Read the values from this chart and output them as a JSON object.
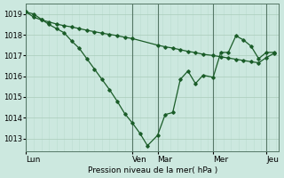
{
  "background_color": "#cce8df",
  "grid_color_major": "#aaccbb",
  "grid_color_minor": "#bbddd0",
  "line_color": "#1a5c28",
  "ylabel": "Pression niveau de la mer( hPa )",
  "ylim": [
    1012.4,
    1019.5
  ],
  "yticks": [
    1013,
    1014,
    1015,
    1016,
    1017,
    1018,
    1019
  ],
  "day_labels": [
    "Lun",
    "Ven",
    "Mar",
    "Mer",
    "Jeu"
  ],
  "day_positions": [
    0.0,
    0.42,
    0.52,
    0.74,
    0.95
  ],
  "vline_positions": [
    0.0,
    0.42,
    0.52,
    0.74,
    0.95
  ],
  "series1_x": [
    0.0,
    0.03,
    0.06,
    0.09,
    0.12,
    0.15,
    0.18,
    0.21,
    0.24,
    0.27,
    0.3,
    0.33,
    0.36,
    0.39,
    0.42,
    0.52,
    0.55,
    0.58,
    0.61,
    0.64,
    0.67,
    0.7,
    0.74,
    0.77,
    0.8,
    0.83,
    0.86,
    0.89,
    0.92,
    0.95,
    0.98
  ],
  "series1_y": [
    1019.1,
    1018.85,
    1018.72,
    1018.62,
    1018.52,
    1018.44,
    1018.38,
    1018.3,
    1018.22,
    1018.15,
    1018.08,
    1018.02,
    1017.96,
    1017.88,
    1017.82,
    1017.5,
    1017.42,
    1017.36,
    1017.28,
    1017.2,
    1017.14,
    1017.06,
    1017.0,
    1016.94,
    1016.88,
    1016.82,
    1016.76,
    1016.7,
    1016.65,
    1016.9,
    1017.1
  ],
  "series2_x": [
    0.0,
    0.03,
    0.06,
    0.09,
    0.12,
    0.15,
    0.18,
    0.21,
    0.24,
    0.27,
    0.3,
    0.33,
    0.36,
    0.39,
    0.42,
    0.45,
    0.48,
    0.52,
    0.55,
    0.58,
    0.61,
    0.64,
    0.67,
    0.7,
    0.74,
    0.77,
    0.8,
    0.83,
    0.86,
    0.89,
    0.92,
    0.95,
    0.98
  ],
  "series2_y": [
    1019.1,
    1019.0,
    1018.75,
    1018.5,
    1018.3,
    1018.1,
    1017.7,
    1017.35,
    1016.85,
    1016.35,
    1015.85,
    1015.35,
    1014.8,
    1014.2,
    1013.75,
    1013.25,
    1012.65,
    1013.15,
    1014.15,
    1014.25,
    1015.85,
    1016.25,
    1015.65,
    1016.05,
    1015.95,
    1017.15,
    1017.15,
    1017.95,
    1017.75,
    1017.45,
    1016.85,
    1017.15,
    1017.15
  ]
}
